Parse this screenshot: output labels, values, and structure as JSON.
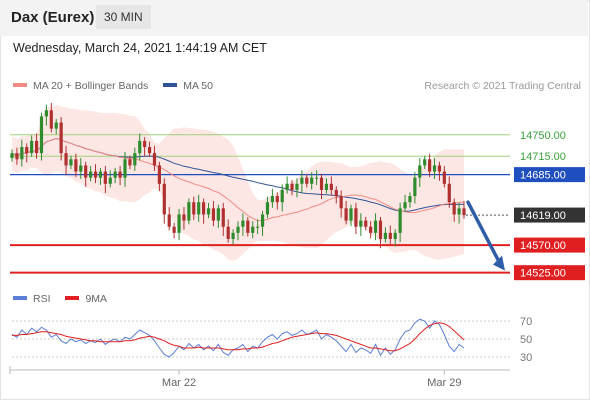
{
  "header": {
    "title": "Dax (Eurex)",
    "timeframe": "30 MIN"
  },
  "timestamp": "Wednesday, March 24, 2021 1:44:19 AM CET",
  "credit": "Research © 2021 Trading Central",
  "colors": {
    "ma20": "#f08a82",
    "ma50": "#2f5597",
    "band": "#fde3e1",
    "up": "#2e8b2e",
    "down": "#b03030",
    "support": "#e02020",
    "resistance": "#9fd07a",
    "pivot": "#1f4fbf",
    "rsi": "#5b7fd6",
    "rsi_ma": "#e02020",
    "arrow": "#2f5da8",
    "current": "#333333"
  },
  "chart_data": [
    {
      "type": "candlestick",
      "legend": [
        {
          "name": "MA 20 + Bollinger Bands",
          "color": "#f08a82"
        },
        {
          "name": "MA 50",
          "color": "#2f5597"
        }
      ],
      "x_ticks": [
        {
          "label": "Mar 22",
          "index": 34
        },
        {
          "label": "Mar 29",
          "index": 88
        }
      ],
      "ylim": [
        14500,
        14810
      ],
      "levels": [
        {
          "label": "14750.00",
          "value": 14750,
          "kind": "resistance"
        },
        {
          "label": "14715.00",
          "value": 14715,
          "kind": "resistance"
        },
        {
          "label": "14685.00",
          "value": 14685,
          "kind": "pivot"
        },
        {
          "label": "14619.00",
          "value": 14619,
          "kind": "current"
        },
        {
          "label": "14570.00",
          "value": 14570,
          "kind": "support"
        },
        {
          "label": "14525.00",
          "value": 14525,
          "kind": "support"
        }
      ],
      "closes": [
        14720,
        14710,
        14730,
        14720,
        14740,
        14720,
        14780,
        14790,
        14760,
        14770,
        14720,
        14700,
        14710,
        14690,
        14700,
        14680,
        14690,
        14680,
        14690,
        14670,
        14680,
        14690,
        14680,
        14710,
        14700,
        14720,
        14740,
        14730,
        14720,
        14700,
        14670,
        14620,
        14600,
        14590,
        14620,
        14610,
        14640,
        14620,
        14640,
        14620,
        14630,
        14610,
        14630,
        14600,
        14580,
        14590,
        14600,
        14610,
        14590,
        14600,
        14600,
        14620,
        14640,
        14650,
        14640,
        14660,
        14670,
        14660,
        14670,
        14680,
        14670,
        14680,
        14680,
        14660,
        14670,
        14660,
        14650,
        14630,
        14610,
        14630,
        14600,
        14610,
        14600,
        14590,
        14610,
        14580,
        14590,
        14580,
        14590,
        14630,
        14640,
        14650,
        14680,
        14700,
        14710,
        14690,
        14700,
        14690,
        14670,
        14640,
        14620,
        14630,
        14619
      ],
      "support_resistance_arrow": {
        "from": 14640,
        "to": 14525
      }
    },
    {
      "type": "line",
      "legend": [
        {
          "name": "RSI",
          "color": "#5b7fd6"
        },
        {
          "name": "9MA",
          "color": "#e02020"
        }
      ],
      "ylim": [
        20,
        80
      ],
      "y_ticks": [
        {
          "label": "70",
          "value": 70
        },
        {
          "label": "50",
          "value": 50
        },
        {
          "label": "30",
          "value": 30
        }
      ],
      "rsi": [
        55,
        52,
        60,
        55,
        62,
        58,
        63,
        60,
        52,
        55,
        48,
        45,
        50,
        47,
        49,
        45,
        48,
        46,
        50,
        44,
        48,
        50,
        47,
        52,
        50,
        55,
        60,
        57,
        54,
        48,
        40,
        33,
        30,
        35,
        42,
        38,
        45,
        40,
        44,
        38,
        42,
        37,
        44,
        35,
        32,
        38,
        40,
        44,
        36,
        42,
        40,
        47,
        52,
        55,
        50,
        56,
        58,
        54,
        56,
        60,
        55,
        57,
        60,
        50,
        55,
        52,
        48,
        42,
        36,
        44,
        35,
        40,
        38,
        34,
        44,
        32,
        40,
        33,
        38,
        50,
        58,
        60,
        68,
        72,
        70,
        62,
        70,
        66,
        55,
        42,
        36,
        44,
        40
      ],
      "rsi_ma": [
        54,
        54,
        55,
        55,
        56,
        57,
        58,
        58,
        57,
        56,
        55,
        53,
        52,
        51,
        50,
        49,
        48,
        48,
        47,
        47,
        47,
        47,
        47,
        48,
        48,
        49,
        51,
        52,
        53,
        52,
        50,
        48,
        45,
        43,
        42,
        40,
        40,
        40,
        41,
        40,
        40,
        40,
        40,
        39,
        38,
        38,
        38,
        39,
        39,
        40,
        40,
        41,
        43,
        45,
        46,
        48,
        50,
        52,
        53,
        54,
        55,
        56,
        57,
        56,
        56,
        55,
        54,
        52,
        50,
        48,
        46,
        44,
        42,
        40,
        40,
        39,
        38,
        37,
        37,
        39,
        42,
        45,
        50,
        56,
        61,
        65,
        67,
        68,
        67,
        64,
        59,
        54,
        49
      ]
    }
  ]
}
